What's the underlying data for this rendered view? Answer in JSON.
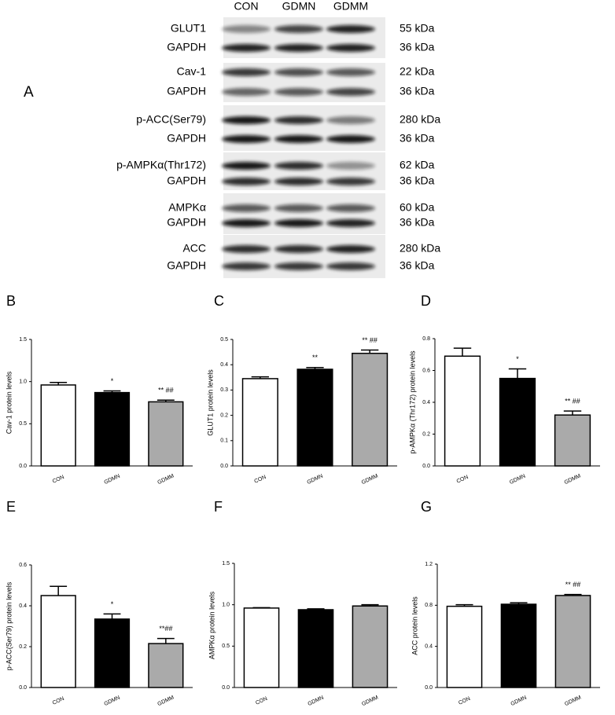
{
  "blot": {
    "panel": "A",
    "lanes": [
      "CON",
      "GDMN",
      "GDMM"
    ],
    "rows": [
      {
        "label": "GLUT1",
        "size": "55 kDa"
      },
      {
        "label": "GAPDH",
        "size": "36 kDa"
      },
      {
        "label": "Cav-1",
        "size": "22 kDa"
      },
      {
        "label": "GAPDH",
        "size": "36 kDa"
      },
      {
        "label": "p-ACC(Ser79)",
        "size": "280 kDa"
      },
      {
        "label": "GAPDH",
        "size": "36 kDa"
      },
      {
        "label": "p-AMPKα(Thr172)",
        "size": "62 kDa"
      },
      {
        "label": "GAPDH",
        "size": "36 kDa"
      },
      {
        "label": "AMPKα",
        "size": "60 kDa"
      },
      {
        "label": "GAPDH",
        "size": "36 kDa"
      },
      {
        "label": "ACC",
        "size": "280 kDa"
      },
      {
        "label": "GAPDH",
        "size": "36 kDa"
      }
    ]
  },
  "chart_data": [
    {
      "type": "bar",
      "panel": "B",
      "ylabel": "Cav-1 protein levels",
      "categories": [
        "CON",
        "GDMN",
        "GDMM"
      ],
      "values": [
        0.96,
        0.87,
        0.76
      ],
      "errors": [
        0.03,
        0.02,
        0.02
      ],
      "colors": [
        "#ffffff",
        "#000000",
        "#aaaaaa"
      ],
      "annotations": [
        null,
        "*",
        "** ##"
      ],
      "ylim": [
        0,
        1.5
      ],
      "yticks": [
        {
          "value": 0,
          "label": "0.0"
        },
        0.5,
        {
          "value": 1,
          "label": "1.0"
        },
        1.5
      ]
    },
    {
      "type": "bar",
      "panel": "C",
      "ylabel": "GLUT1 protein levels",
      "categories": [
        "CON",
        "GDMN",
        "GDMM"
      ],
      "values": [
        0.345,
        0.382,
        0.445
      ],
      "errors": [
        0.007,
        0.007,
        0.013
      ],
      "colors": [
        "#ffffff",
        "#000000",
        "#aaaaaa"
      ],
      "annotations": [
        null,
        "**",
        "** ##"
      ],
      "ylim": [
        0,
        0.5
      ],
      "yticks": [
        {
          "value": 0,
          "label": "0.0"
        },
        0.1,
        0.2,
        0.3,
        0.4,
        0.5
      ]
    },
    {
      "type": "bar",
      "panel": "D",
      "ylabel": "p-AMPKα (Thr172) protein levels",
      "categories": [
        "CON",
        "GDMN",
        "GDMM"
      ],
      "values": [
        0.69,
        0.55,
        0.32
      ],
      "errors": [
        0.05,
        0.06,
        0.025
      ],
      "colors": [
        "#ffffff",
        "#000000",
        "#aaaaaa"
      ],
      "annotations": [
        null,
        "*",
        "** ##"
      ],
      "ylim": [
        0,
        0.8
      ],
      "yticks": [
        {
          "value": 0,
          "label": "0.0"
        },
        0.2,
        0.4,
        0.6,
        0.8
      ]
    },
    {
      "type": "bar",
      "panel": "E",
      "ylabel": "p-ACC(Ser79) protein levels",
      "categories": [
        "CON",
        "GDMN",
        "GDMM"
      ],
      "values": [
        0.45,
        0.335,
        0.215
      ],
      "errors": [
        0.045,
        0.025,
        0.025
      ],
      "colors": [
        "#ffffff",
        "#000000",
        "#aaaaaa"
      ],
      "annotations": [
        null,
        "*",
        "**##"
      ],
      "ylim": [
        0,
        0.6
      ],
      "yticks": [
        {
          "value": 0,
          "label": "0.0"
        },
        0.2,
        0.4,
        0.6
      ]
    },
    {
      "type": "bar",
      "panel": "F",
      "ylabel": "AMPKα protein levels",
      "categories": [
        "CON",
        "GDMN",
        "GDMM"
      ],
      "values": [
        0.96,
        0.94,
        0.985
      ],
      "errors": [
        0.005,
        0.01,
        0.015
      ],
      "colors": [
        "#ffffff",
        "#000000",
        "#aaaaaa"
      ],
      "ylim": [
        0,
        1.5
      ],
      "yticks": [
        {
          "value": 0,
          "label": "0.0"
        },
        0.5,
        {
          "value": 1,
          "label": "1.0"
        },
        1.5
      ]
    },
    {
      "type": "bar",
      "panel": "G",
      "ylabel": "ACC protein levels",
      "categories": [
        "CON",
        "GDMN",
        "GDMM"
      ],
      "values": [
        0.79,
        0.81,
        0.895
      ],
      "errors": [
        0.015,
        0.015,
        0.01
      ],
      "colors": [
        "#ffffff",
        "#000000",
        "#aaaaaa"
      ],
      "annotations": [
        null,
        null,
        "** ##"
      ],
      "ylim": [
        0,
        1.2
      ],
      "yticks": [
        {
          "value": 0,
          "label": "0.0"
        },
        0.4,
        0.8,
        1.2
      ]
    }
  ]
}
